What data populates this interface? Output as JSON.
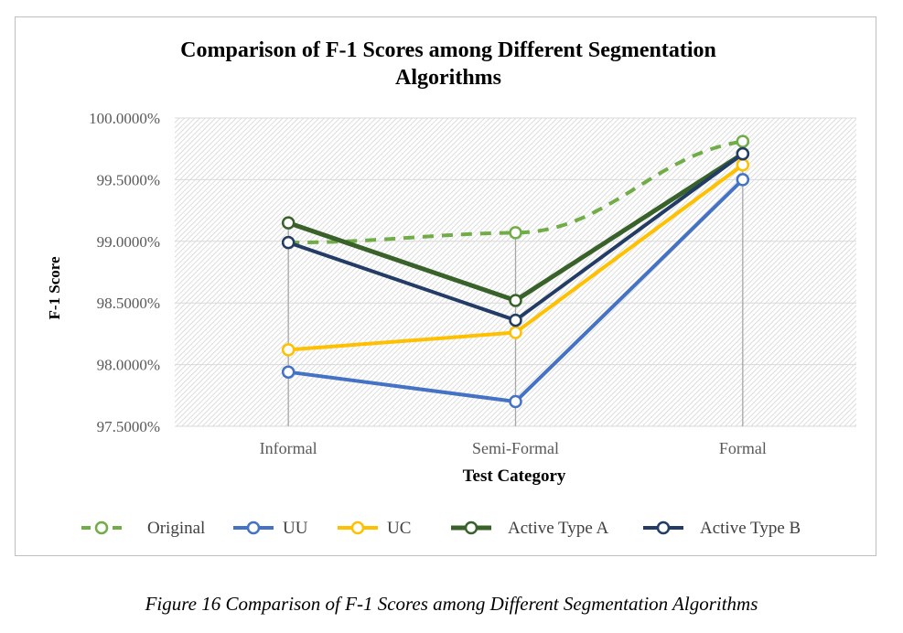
{
  "caption": "Figure 16 Comparison of F-1 Scores among Different Segmentation Algorithms",
  "chart_data": {
    "type": "line",
    "title_lines": [
      "Comparison of F-1 Scores among Different Segmentation",
      "Algorithms"
    ],
    "xlabel": "Test Category",
    "ylabel": "F-1 Score",
    "categories": [
      "Informal",
      "Semi-Formal",
      "Formal"
    ],
    "ylim": [
      97.5,
      100.0
    ],
    "yticks": [
      "97.5000%",
      "98.0000%",
      "98.5000%",
      "99.0000%",
      "99.5000%",
      "100.0000%"
    ],
    "ytick_values": [
      97.5,
      98.0,
      98.5,
      99.0,
      99.5,
      100.0
    ],
    "plot_background": "diagonal hatch",
    "legend_position": "bottom",
    "series": [
      {
        "name": "Original",
        "values": [
          98.99,
          99.07,
          99.81
        ],
        "color": "#70ad47",
        "dashed": true,
        "width": 4
      },
      {
        "name": "UU",
        "values": [
          97.94,
          97.7,
          99.5
        ],
        "color": "#4472c4",
        "dashed": false,
        "width": 4
      },
      {
        "name": "UC",
        "values": [
          98.12,
          98.26,
          99.62
        ],
        "color": "#ffc000",
        "dashed": false,
        "width": 4
      },
      {
        "name": "Active Type A",
        "values": [
          99.15,
          98.52,
          99.71
        ],
        "color": "#38622a",
        "dashed": false,
        "width": 5
      },
      {
        "name": "Active Type B",
        "values": [
          98.99,
          98.36,
          99.71
        ],
        "color": "#223c66",
        "dashed": false,
        "width": 4
      }
    ]
  }
}
